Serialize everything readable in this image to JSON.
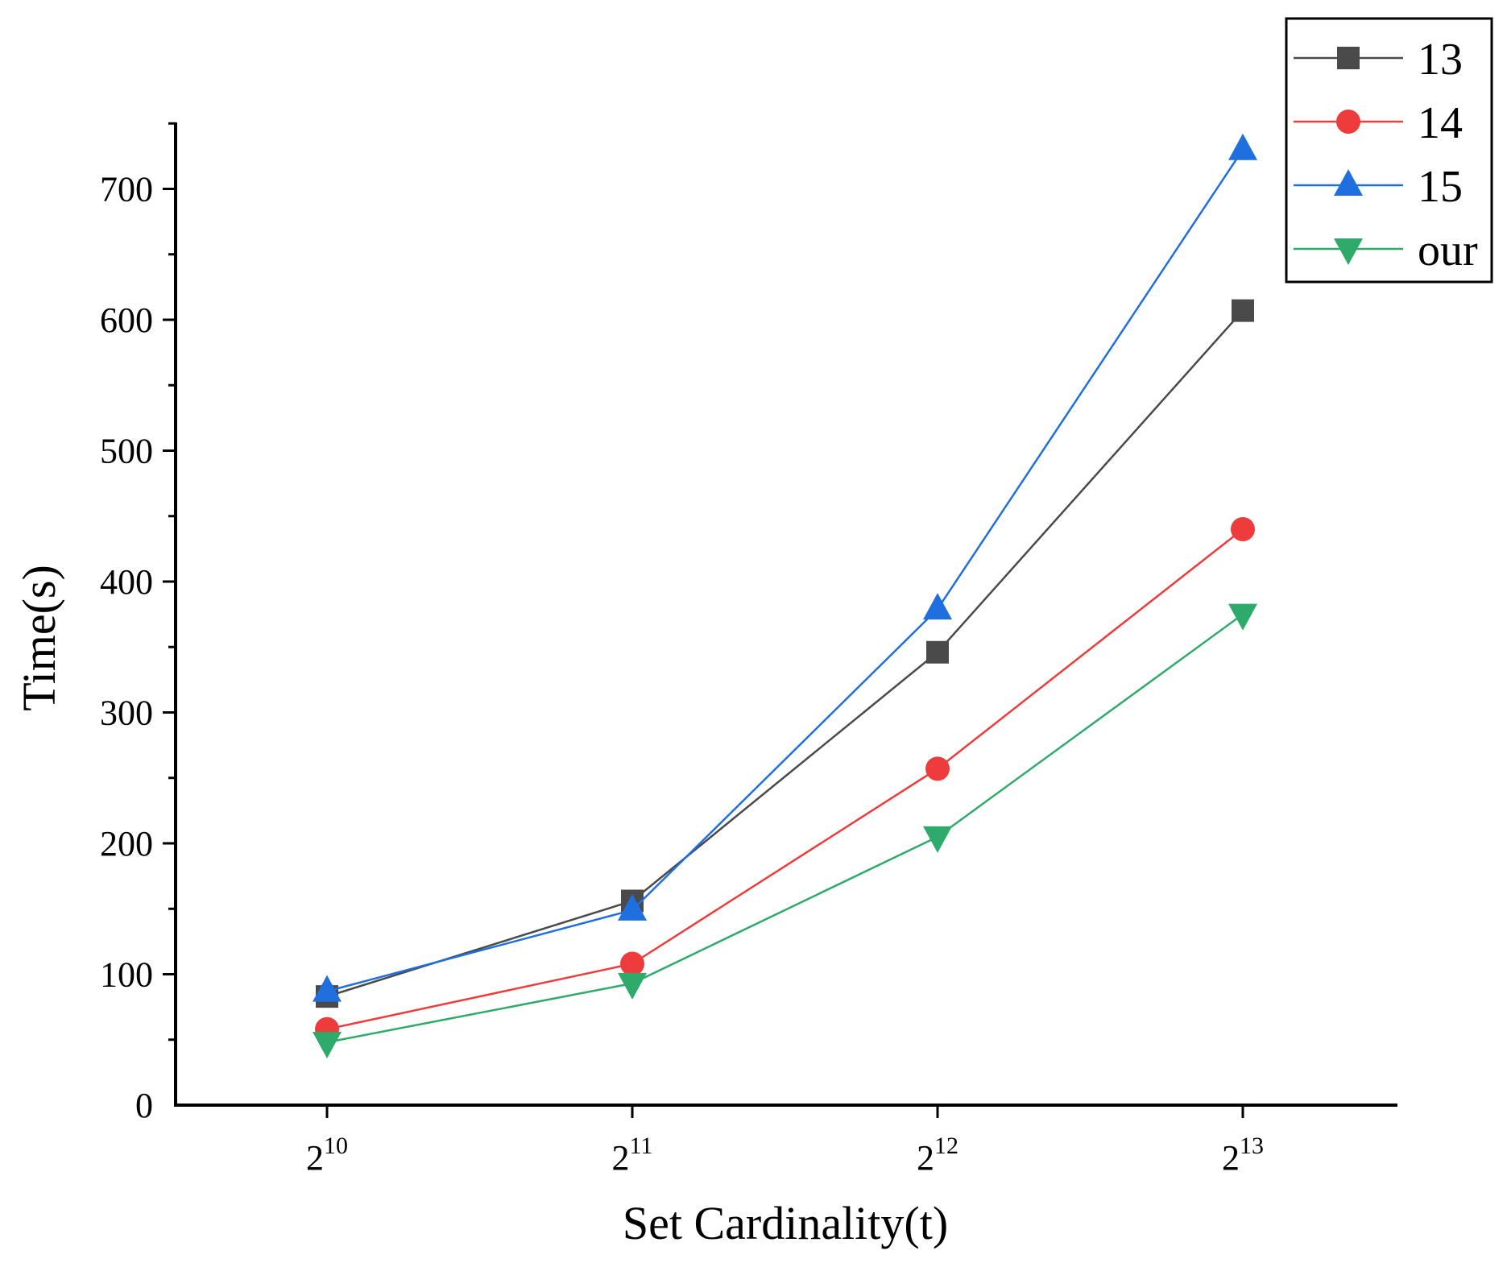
{
  "chart_data": {
    "type": "line",
    "title": "",
    "xlabel": "Set Cardinality(t)",
    "ylabel": "Time(s)",
    "categories": [
      {
        "base": "2",
        "exp": "10"
      },
      {
        "base": "2",
        "exp": "11"
      },
      {
        "base": "2",
        "exp": "12"
      },
      {
        "base": "2",
        "exp": "13"
      }
    ],
    "ylim": [
      0,
      750
    ],
    "yticks": [
      0,
      100,
      200,
      300,
      400,
      500,
      600,
      700
    ],
    "yminor_step": 50,
    "grid": false,
    "legend_position": "top-right",
    "series": [
      {
        "name": "13",
        "color": "#4a4a4a",
        "marker": "square",
        "values": [
          83,
          156,
          346,
          607
        ]
      },
      {
        "name": "14",
        "color": "#ee3b3b",
        "marker": "circle",
        "values": [
          58,
          108,
          257,
          440
        ]
      },
      {
        "name": "15",
        "color": "#1f6fdf",
        "marker": "triangle-up",
        "values": [
          87,
          149,
          379,
          730
        ]
      },
      {
        "name": "our",
        "color": "#2eab6a",
        "marker": "triangle-down",
        "values": [
          48,
          93,
          205,
          375
        ]
      }
    ]
  }
}
